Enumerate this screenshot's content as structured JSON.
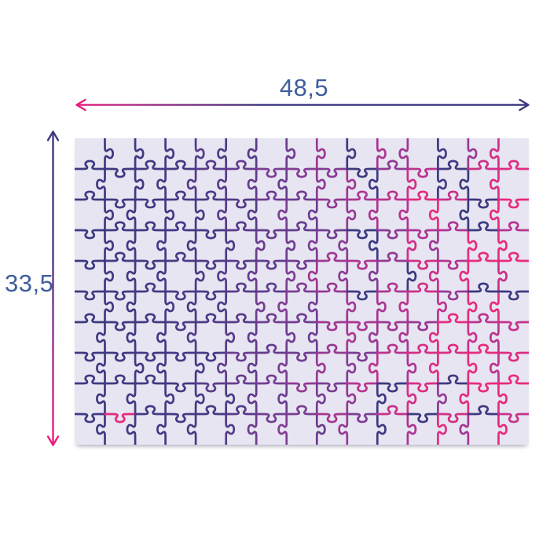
{
  "diagram": {
    "title": "puzzle-size-diagram",
    "width_dimension": {
      "label": "48,5"
    },
    "height_dimension": {
      "label": "33,5"
    },
    "label_color": "#3e5e9d",
    "arrow_navy": "#3c3a80",
    "arrow_pink": "#ec1e7e",
    "puzzle": {
      "columns": 15,
      "rows": 10,
      "background_color": "#e6e5f1",
      "line_gradient": [
        "#3b3980",
        "#463984",
        "#7a3d95",
        "#b83390",
        "#e92a7d"
      ],
      "line_width": 2.7,
      "seed": 12
    }
  }
}
